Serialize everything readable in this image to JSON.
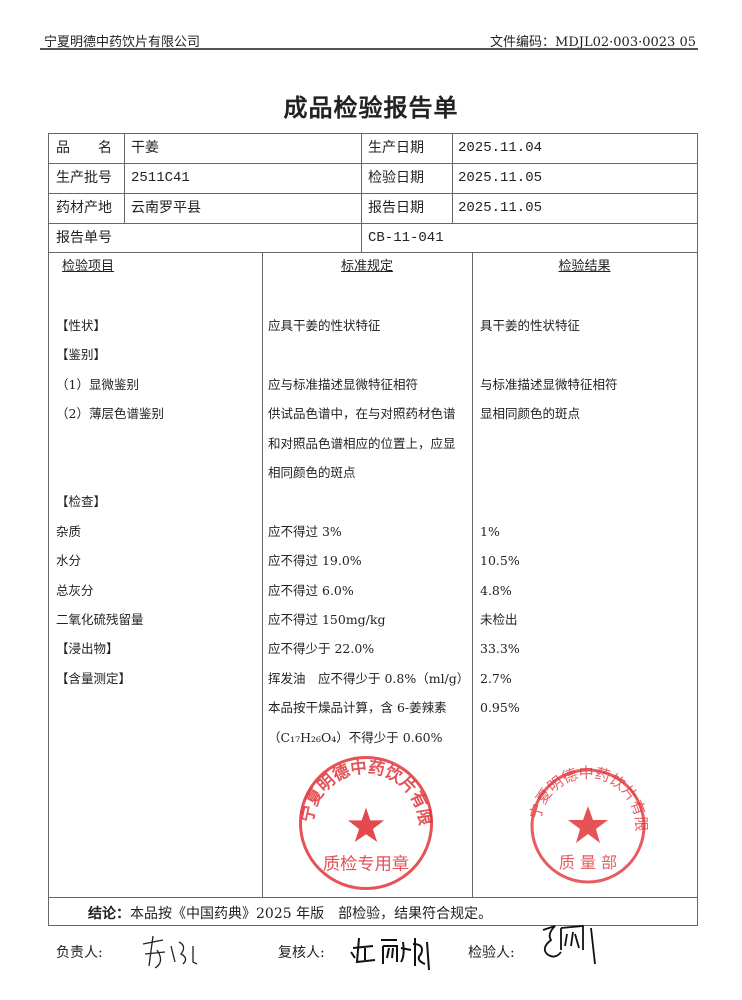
{
  "header": {
    "company": "宁夏明德中药饮片有限公司",
    "doc_code": "文件编码：MDJL02·003·0023 05"
  },
  "title": "成品检验报告单",
  "info": {
    "product_name_label": "品　　名",
    "product_name": "干姜",
    "batch_label": "生产批号",
    "batch": "2511C41",
    "origin_label": "药材产地",
    "origin": "云南罗平县",
    "report_no_label": "报告单号",
    "report_no": "CB-11-041",
    "prod_date_label": "生产日期",
    "prod_date": "2025.11.04",
    "test_date_label": "检验日期",
    "test_date": "2025.11.05",
    "report_date_label": "报告日期",
    "report_date": "2025.11.05"
  },
  "columns": {
    "item": "检验项目",
    "standard": "标准规定",
    "result": "检验结果"
  },
  "rows": [
    {
      "item": "【性状】",
      "standard": "应具干姜的性状特征",
      "result": "具干姜的性状特征"
    },
    {
      "item": "【鉴别】",
      "standard": "",
      "result": ""
    },
    {
      "item": "（1）显微鉴别",
      "standard": "应与标准描述显微特征相符",
      "result": "与标准描述显微特征相符"
    },
    {
      "item": "（2）薄层色谱鉴别",
      "standard": "供试品色谱中，在与对照药材色谱",
      "result": "显相同颜色的斑点"
    },
    {
      "item": "",
      "standard": "和对照品色谱相应的位置上，应显",
      "result": ""
    },
    {
      "item": "",
      "standard": "相同颜色的斑点",
      "result": ""
    },
    {
      "item": "【检查】",
      "standard": "",
      "result": ""
    },
    {
      "item": "杂质",
      "standard": "应不得过 3%",
      "result": "1%"
    },
    {
      "item": "水分",
      "standard": "应不得过 19.0%",
      "result": "10.5%"
    },
    {
      "item": "总灰分",
      "standard": "应不得过 6.0%",
      "result": "4.8%"
    },
    {
      "item": "二氧化硫残留量",
      "standard": "应不得过 150mg/kg",
      "result": "未检出"
    },
    {
      "item": "【浸出物】",
      "standard": "应不得少于 22.0%",
      "result": "33.3%"
    },
    {
      "item": "【含量测定】",
      "standard": "挥发油　应不得少于 0.8%（ml/g）",
      "result": "2.7%"
    },
    {
      "item": "",
      "standard": "本品按干燥品计算，含 6-姜辣素",
      "result": "0.95%"
    },
    {
      "item": "",
      "standard": "（C₁₇H₂₆O₄）不得少于 0.60%",
      "result": ""
    }
  ],
  "conclusion": {
    "label": "结论：",
    "text": "本品按《中国药典》2025 年版　部检验，结果符合规定。"
  },
  "signatures": {
    "responsible_label": "负责人:",
    "reviewer_label": "复核人:",
    "inspector_label": "检验人:"
  },
  "stamps": {
    "top": {
      "text": "宁夏明德中药饮片有限公司",
      "dept": "质 量 部"
    },
    "bottom": {
      "text": "宁夏明德中药饮片有限公司",
      "dept": "质检专用章"
    },
    "color": "#e0353a"
  }
}
